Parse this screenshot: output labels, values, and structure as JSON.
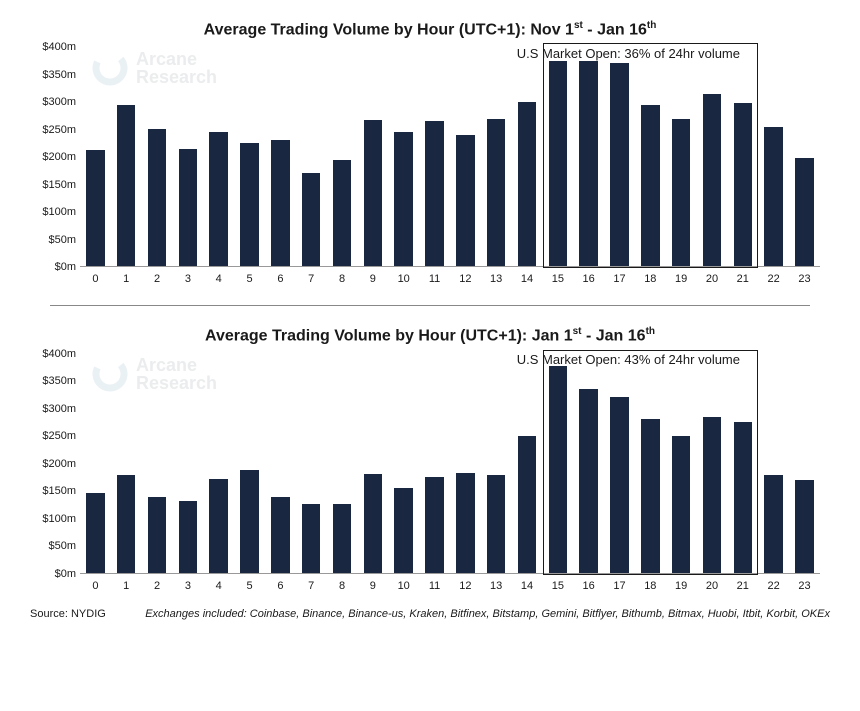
{
  "chart1": {
    "type": "bar",
    "title_html": "Average Trading Volume by Hour (UTC+1): Nov 1<sup>st</sup> - Jan 16<sup>th</sup>",
    "subtitle": "U.S Market Open: 36% of 24hr volume",
    "categories": [
      "0",
      "1",
      "2",
      "3",
      "4",
      "5",
      "6",
      "7",
      "8",
      "9",
      "10",
      "11",
      "12",
      "13",
      "14",
      "15",
      "16",
      "17",
      "18",
      "19",
      "20",
      "21",
      "22",
      "23"
    ],
    "values": [
      212,
      295,
      250,
      215,
      245,
      225,
      230,
      170,
      195,
      268,
      245,
      265,
      240,
      270,
      300,
      375,
      375,
      372,
      295,
      270,
      315,
      298,
      255,
      198
    ],
    "bar_color": "#1a2740",
    "y_ticks": [
      "$0m",
      "$50m",
      "$100m",
      "$150m",
      "$200m",
      "$250m",
      "$300m",
      "$350m",
      "$400m"
    ],
    "ylim": [
      0,
      400
    ],
    "highlight_start": 15,
    "highlight_end": 21,
    "background_color": "#ffffff"
  },
  "chart2": {
    "type": "bar",
    "title_html": "Average Trading Volume by Hour (UTC+1): Jan 1<sup>st</sup> - Jan 16<sup>th</sup>",
    "subtitle": "U.S Market Open: 43% of 24hr volume",
    "categories": [
      "0",
      "1",
      "2",
      "3",
      "4",
      "5",
      "6",
      "7",
      "8",
      "9",
      "10",
      "11",
      "12",
      "13",
      "14",
      "15",
      "16",
      "17",
      "18",
      "19",
      "20",
      "21",
      "22",
      "23"
    ],
    "values": [
      145,
      178,
      138,
      130,
      172,
      188,
      138,
      125,
      125,
      180,
      155,
      175,
      182,
      178,
      250,
      378,
      335,
      320,
      280,
      250,
      285,
      275,
      178,
      170
    ],
    "bar_color": "#1a2740",
    "y_ticks": [
      "$0m",
      "$50m",
      "$100m",
      "$150m",
      "$200m",
      "$250m",
      "$300m",
      "$350m",
      "$400m"
    ],
    "ylim": [
      0,
      400
    ],
    "highlight_start": 15,
    "highlight_end": 21,
    "background_color": "#ffffff"
  },
  "watermark": {
    "line1": "Arcane",
    "line2": "Research",
    "ring_color": "#b0c8d4"
  },
  "footer": {
    "source": "Source: NYDIG",
    "exchanges": "Exchanges included: Coinbase, Binance, Binance-us, Kraken, Bitfinex, Bitstamp, Gemini, Bitflyer, Bithumb, Bitmax, Huobi, Itbit, Korbit, OKEx"
  }
}
